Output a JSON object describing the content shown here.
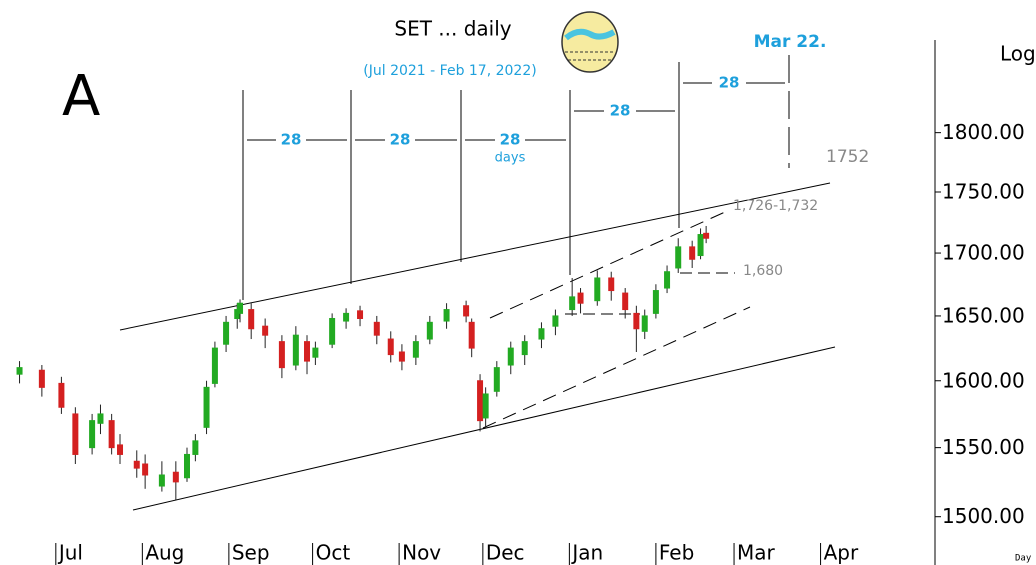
{
  "chart_data": {
    "type": "candlestick",
    "title": "SET ... daily",
    "subtitle": "(Jul 2021 - Feb 17, 2022)",
    "panel_label": "A",
    "y_axis_label": "Log",
    "x_axis_label": "Day",
    "log_scale": true,
    "up_color": "#22aa22",
    "down_color": "#d42020",
    "xlim": [
      -20,
      315
    ],
    "ylim": [
      1466,
      1917
    ],
    "xticks": [
      {
        "value": 0,
        "label": "Jul"
      },
      {
        "value": 31,
        "label": "Aug"
      },
      {
        "value": 62,
        "label": "Sep"
      },
      {
        "value": 92,
        "label": "Oct"
      },
      {
        "value": 123,
        "label": "Nov"
      },
      {
        "value": 153,
        "label": "Dec"
      },
      {
        "value": 184,
        "label": "Jan"
      },
      {
        "value": 215,
        "label": "Feb"
      },
      {
        "value": 243,
        "label": "Mar"
      },
      {
        "value": 274,
        "label": "Apr"
      }
    ],
    "yticks": [
      {
        "value": 1500,
        "label": "1500.00"
      },
      {
        "value": 1550,
        "label": "1550.00"
      },
      {
        "value": 1600,
        "label": "1600.00"
      },
      {
        "value": 1650,
        "label": "1650.00"
      },
      {
        "value": 1700,
        "label": "1700.00"
      },
      {
        "value": 1750,
        "label": "1750.00"
      },
      {
        "value": 1800,
        "label": "1800.00"
      }
    ],
    "x": [
      -13,
      -5,
      2,
      7,
      13,
      16,
      20,
      23,
      29,
      32,
      38,
      43,
      47,
      50,
      54,
      57,
      61,
      65,
      66,
      70,
      75,
      81,
      86,
      90,
      93,
      99,
      104,
      109,
      115,
      120,
      124,
      129,
      134,
      140,
      147,
      149,
      152,
      154,
      158,
      163,
      168,
      174,
      179,
      185,
      188,
      194,
      199,
      204,
      208,
      211,
      215,
      219,
      223,
      228,
      231,
      233
    ],
    "open": [
      1605,
      1608,
      1598,
      1575,
      1550,
      1568,
      1570,
      1552,
      1540,
      1538,
      1522,
      1532,
      1528,
      1545,
      1565,
      1598,
      1628,
      1648,
      1652,
      1655,
      1642,
      1630,
      1612,
      1630,
      1618,
      1628,
      1646,
      1654,
      1645,
      1632,
      1622,
      1618,
      1632,
      1646,
      1658,
      1645,
      1600,
      1572,
      1592,
      1612,
      1620,
      1632,
      1642,
      1655,
      1668,
      1662,
      1680,
      1668,
      1652,
      1638,
      1652,
      1672,
      1688,
      1705,
      1698,
      1716
    ],
    "high": [
      1615,
      1612,
      1603,
      1580,
      1575,
      1582,
      1575,
      1560,
      1548,
      1545,
      1540,
      1540,
      1550,
      1560,
      1600,
      1630,
      1650,
      1660,
      1663,
      1660,
      1648,
      1635,
      1642,
      1635,
      1630,
      1652,
      1656,
      1658,
      1650,
      1638,
      1628,
      1635,
      1650,
      1660,
      1662,
      1648,
      1605,
      1595,
      1615,
      1630,
      1635,
      1645,
      1655,
      1680,
      1672,
      1686,
      1685,
      1672,
      1658,
      1655,
      1675,
      1690,
      1712,
      1710,
      1720,
      1722
    ],
    "low": [
      1598,
      1588,
      1575,
      1538,
      1545,
      1560,
      1545,
      1538,
      1528,
      1520,
      1518,
      1512,
      1525,
      1540,
      1560,
      1595,
      1622,
      1640,
      1645,
      1632,
      1625,
      1602,
      1608,
      1605,
      1612,
      1625,
      1640,
      1642,
      1628,
      1614,
      1608,
      1612,
      1628,
      1640,
      1645,
      1618,
      1562,
      1565,
      1588,
      1605,
      1612,
      1625,
      1635,
      1650,
      1652,
      1658,
      1662,
      1648,
      1622,
      1632,
      1648,
      1668,
      1684,
      1688,
      1695,
      1708
    ],
    "close": [
      1610,
      1595,
      1580,
      1545,
      1570,
      1575,
      1550,
      1545,
      1535,
      1530,
      1530,
      1525,
      1545,
      1555,
      1595,
      1625,
      1645,
      1655,
      1660,
      1640,
      1635,
      1610,
      1635,
      1615,
      1625,
      1648,
      1652,
      1648,
      1635,
      1620,
      1615,
      1630,
      1645,
      1655,
      1650,
      1625,
      1570,
      1590,
      1610,
      1625,
      1630,
      1640,
      1650,
      1665,
      1660,
      1680,
      1670,
      1655,
      1640,
      1650,
      1670,
      1685,
      1705,
      1695,
      1715,
      1712
    ],
    "annotations": {
      "cycle_labels": [
        "28",
        "28",
        "28",
        "28",
        "28"
      ],
      "cycle_unit": "days",
      "target_date": "Mar 22.",
      "levels": [
        "1752",
        "1,726-1,732",
        "1,680"
      ]
    }
  }
}
